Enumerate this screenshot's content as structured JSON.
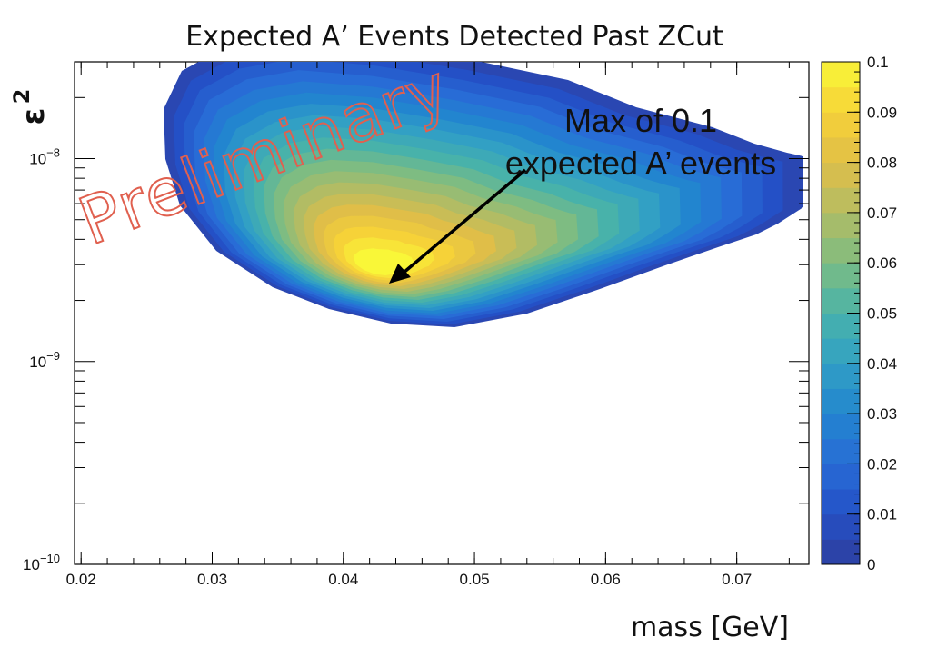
{
  "chart_data": {
    "type": "heatmap",
    "title": "Expected A’ Events Detected Past ZCut",
    "xlabel": "mass [GeV]",
    "ylabel": "ε",
    "ylabel_superscript": "2",
    "x_ticks": [
      "0.02",
      "0.03",
      "0.04",
      "0.05",
      "0.06",
      "0.07"
    ],
    "x_tick_values": [
      0.02,
      0.03,
      0.04,
      0.05,
      0.06,
      0.07
    ],
    "xlim": [
      0.0195,
      0.0755
    ],
    "y_scale": "log",
    "ylim": [
      1e-10,
      3e-08
    ],
    "y_ticks": [
      {
        "value": 1e-10,
        "base": "10",
        "exp": "−10"
      },
      {
        "value": 1e-09,
        "base": "10",
        "exp": "−9"
      },
      {
        "value": 1e-08,
        "base": "10",
        "exp": "−8"
      }
    ],
    "colorbar": {
      "min": 0,
      "max": 0.1,
      "tick_labels": [
        "0",
        "0.01",
        "0.02",
        "0.03",
        "0.04",
        "0.05",
        "0.06",
        "0.07",
        "0.08",
        "0.09",
        "0.1"
      ],
      "tick_values": [
        0,
        0.01,
        0.02,
        0.03,
        0.04,
        0.05,
        0.06,
        0.07,
        0.08,
        0.09,
        0.1
      ],
      "levels": 20
    },
    "peak": {
      "mass": 0.043,
      "epsilon2": 2.4e-09,
      "value": 0.1
    },
    "annotation": {
      "line1": "Max of 0.1",
      "line2": "expected A’ events"
    },
    "stamp": "Preliminary",
    "colors": {
      "frame": "#000000",
      "low": "#3140a5",
      "mid": "#31a4c3",
      "high": "#f8f53a",
      "stamp": "#e0604f"
    }
  }
}
